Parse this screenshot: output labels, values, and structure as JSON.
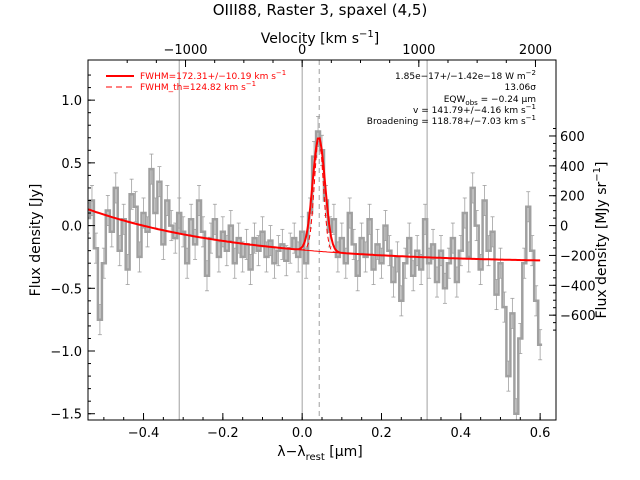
{
  "chart_data": {
    "type": "line",
    "title": "OIII88, Raster 3, spaxel (4,5)",
    "xlabel": "λ−λ",
    "xlabel_sub": "rest",
    "xlabel_unit": " [μm]",
    "ylabel": "Flux density [Jy]",
    "top_xlabel": "Velocity [km s",
    "top_xlabel_exp": "−1",
    "top_xlabel_end": "]",
    "right_ylabel": "Flux density [MJy sr",
    "right_ylabel_exp": "−1",
    "right_ylabel_end": "]",
    "xlim": [
      -0.54,
      0.64
    ],
    "ylim": [
      -1.55,
      1.32
    ],
    "x_ticks": [
      -0.4,
      -0.2,
      0.0,
      0.2,
      0.4,
      0.6
    ],
    "x_tick_labels": [
      "−0.4",
      "−0.2",
      "0.0",
      "0.2",
      "0.4",
      "0.6"
    ],
    "y_ticks": [
      -1.5,
      -1.0,
      -0.5,
      0.0,
      0.5,
      1.0
    ],
    "y_tick_labels": [
      "−1.5",
      "−1.0",
      "−0.5",
      "0.0",
      "0.5",
      "1.0"
    ],
    "top_ticks_velocity": [
      -1000,
      0,
      1000,
      2000
    ],
    "top_tick_labels": [
      "−1000",
      "0",
      "1000",
      "2000"
    ],
    "right_ticks": [
      -600,
      -400,
      -200,
      0,
      200,
      400,
      600
    ],
    "right_tick_labels": [
      "−600",
      "−400",
      "−200",
      "0",
      "200",
      "400",
      "600"
    ],
    "right_per_jy": 840,
    "velocity_per_micron": 3400,
    "vertical_lines_x": [
      -0.31,
      0.0,
      0.315
    ],
    "dashed_line_x": 0.043,
    "legend": [
      {
        "label": "FWHM=172.31+/−10.19 km s",
        "exp": "−1",
        "style": "solid"
      },
      {
        "label": "FWHM_th=124.82 km s",
        "exp": "−1",
        "style": "dashed"
      }
    ],
    "annotations": {
      "flux": "1.85e−17+/−1.42e−18 W m",
      "flux_exp": "−2",
      "sigma": "13.06σ",
      "eqw": "EQW",
      "eqw_sub": "obs",
      "eqw_val": " = −0.24 μm",
      "v": "v = 141.79+/−4.16 km s",
      "v_exp": "−1",
      "broadening": "Broadening = 118.78+/−7.03 km s",
      "broadening_exp": "−1"
    },
    "fit": {
      "center": 0.042,
      "amplitude": 0.91,
      "sigma": 0.0155,
      "cont_a": -0.178,
      "cont_b": -0.83,
      "cont_c": 0.78,
      "cont_floor": -0.3
    },
    "spectrum": [
      {
        "x": -0.54,
        "y": 0.06
      },
      {
        "x": -0.53,
        "y": 0.2
      },
      {
        "x": -0.52,
        "y": -0.18
      },
      {
        "x": -0.51,
        "y": -0.75
      },
      {
        "x": -0.5,
        "y": -0.3
      },
      {
        "x": -0.49,
        "y": 0.12
      },
      {
        "x": -0.48,
        "y": -0.05
      },
      {
        "x": -0.47,
        "y": 0.3
      },
      {
        "x": -0.46,
        "y": -0.2
      },
      {
        "x": -0.45,
        "y": 0.05
      },
      {
        "x": -0.44,
        "y": -0.35
      },
      {
        "x": -0.43,
        "y": 0.25
      },
      {
        "x": -0.42,
        "y": 0.15
      },
      {
        "x": -0.41,
        "y": -0.25
      },
      {
        "x": -0.4,
        "y": 0.1
      },
      {
        "x": -0.39,
        "y": -0.05
      },
      {
        "x": -0.38,
        "y": 0.45
      },
      {
        "x": -0.37,
        "y": 0.1
      },
      {
        "x": -0.36,
        "y": 0.35
      },
      {
        "x": -0.35,
        "y": -0.15
      },
      {
        "x": -0.34,
        "y": 0.2
      },
      {
        "x": -0.33,
        "y": 0.0
      },
      {
        "x": -0.32,
        "y": -0.1
      },
      {
        "x": -0.31,
        "y": 0.1
      },
      {
        "x": -0.3,
        "y": -0.05
      },
      {
        "x": -0.29,
        "y": -0.3
      },
      {
        "x": -0.28,
        "y": 0.05
      },
      {
        "x": -0.27,
        "y": -0.15
      },
      {
        "x": -0.26,
        "y": 0.2
      },
      {
        "x": -0.25,
        "y": -0.05
      },
      {
        "x": -0.24,
        "y": -0.4
      },
      {
        "x": -0.23,
        "y": -0.1
      },
      {
        "x": -0.22,
        "y": 0.05
      },
      {
        "x": -0.21,
        "y": -0.25
      },
      {
        "x": -0.2,
        "y": -0.05
      },
      {
        "x": -0.19,
        "y": -0.2
      },
      {
        "x": -0.18,
        "y": 0.0
      },
      {
        "x": -0.17,
        "y": -0.3
      },
      {
        "x": -0.16,
        "y": -0.1
      },
      {
        "x": -0.15,
        "y": -0.25
      },
      {
        "x": -0.14,
        "y": -0.15
      },
      {
        "x": -0.13,
        "y": -0.35
      },
      {
        "x": -0.12,
        "y": -0.1
      },
      {
        "x": -0.11,
        "y": -0.2
      },
      {
        "x": -0.1,
        "y": -0.05
      },
      {
        "x": -0.09,
        "y": -0.25
      },
      {
        "x": -0.08,
        "y": -0.12
      },
      {
        "x": -0.07,
        "y": -0.3
      },
      {
        "x": -0.06,
        "y": -0.2
      },
      {
        "x": -0.05,
        "y": -0.15
      },
      {
        "x": -0.04,
        "y": -0.28
      },
      {
        "x": -0.03,
        "y": -0.18
      },
      {
        "x": -0.02,
        "y": -0.1
      },
      {
        "x": -0.01,
        "y": -0.25
      },
      {
        "x": 0.0,
        "y": -0.05
      },
      {
        "x": 0.01,
        "y": -0.3
      },
      {
        "x": 0.02,
        "y": 0.1
      },
      {
        "x": 0.03,
        "y": 0.55
      },
      {
        "x": 0.04,
        "y": 0.75
      },
      {
        "x": 0.05,
        "y": 0.6
      },
      {
        "x": 0.06,
        "y": 0.2
      },
      {
        "x": 0.07,
        "y": -0.05
      },
      {
        "x": 0.08,
        "y": 0.05
      },
      {
        "x": 0.09,
        "y": -0.25
      },
      {
        "x": 0.1,
        "y": -0.1
      },
      {
        "x": 0.11,
        "y": -0.3
      },
      {
        "x": 0.12,
        "y": 0.1
      },
      {
        "x": 0.13,
        "y": -0.15
      },
      {
        "x": 0.14,
        "y": -0.4
      },
      {
        "x": 0.15,
        "y": -0.1
      },
      {
        "x": 0.16,
        "y": -0.25
      },
      {
        "x": 0.17,
        "y": 0.05
      },
      {
        "x": 0.18,
        "y": -0.35
      },
      {
        "x": 0.19,
        "y": -0.15
      },
      {
        "x": 0.2,
        "y": -0.3
      },
      {
        "x": 0.21,
        "y": 0.0
      },
      {
        "x": 0.22,
        "y": -0.2
      },
      {
        "x": 0.23,
        "y": -0.45
      },
      {
        "x": 0.24,
        "y": -0.25
      },
      {
        "x": 0.25,
        "y": -0.6
      },
      {
        "x": 0.26,
        "y": -0.3
      },
      {
        "x": 0.27,
        "y": -0.1
      },
      {
        "x": 0.28,
        "y": -0.4
      },
      {
        "x": 0.29,
        "y": -0.2
      },
      {
        "x": 0.3,
        "y": -0.35
      },
      {
        "x": 0.31,
        "y": 0.05
      },
      {
        "x": 0.32,
        "y": -0.3
      },
      {
        "x": 0.33,
        "y": -0.15
      },
      {
        "x": 0.34,
        "y": -0.45
      },
      {
        "x": 0.35,
        "y": -0.2
      },
      {
        "x": 0.36,
        "y": -0.5
      },
      {
        "x": 0.37,
        "y": -0.3
      },
      {
        "x": 0.38,
        "y": -0.1
      },
      {
        "x": 0.39,
        "y": -0.45
      },
      {
        "x": 0.4,
        "y": -0.2
      },
      {
        "x": 0.41,
        "y": 0.1
      },
      {
        "x": 0.42,
        "y": -0.25
      },
      {
        "x": 0.43,
        "y": 0.3
      },
      {
        "x": 0.44,
        "y": 0.0
      },
      {
        "x": 0.45,
        "y": -0.35
      },
      {
        "x": 0.46,
        "y": 0.2
      },
      {
        "x": 0.47,
        "y": -0.2
      },
      {
        "x": 0.48,
        "y": -0.05
      },
      {
        "x": 0.49,
        "y": -0.55
      },
      {
        "x": 0.5,
        "y": -0.3
      },
      {
        "x": 0.51,
        "y": -0.65
      },
      {
        "x": 0.52,
        "y": -1.2
      },
      {
        "x": 0.53,
        "y": -0.7
      },
      {
        "x": 0.54,
        "y": -1.5
      },
      {
        "x": 0.55,
        "y": -0.9
      },
      {
        "x": 0.56,
        "y": -0.3
      },
      {
        "x": 0.57,
        "y": 0.15
      },
      {
        "x": 0.58,
        "y": -0.2
      },
      {
        "x": 0.59,
        "y": -0.6
      },
      {
        "x": 0.6,
        "y": -0.95
      }
    ],
    "error": 0.12,
    "colors": {
      "spectrum": "#a0a0a0",
      "fit": "#ff0000",
      "axes": "#000000",
      "vlines": "#a0a0a0"
    }
  }
}
